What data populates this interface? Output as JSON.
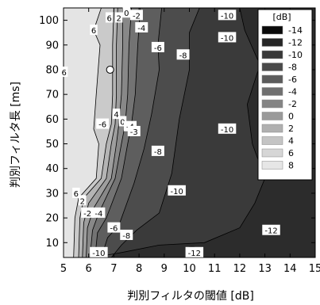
{
  "chart_data": {
    "type": "heatmap",
    "xlabel": "判別フィルタの閾値 [dB]",
    "ylabel": "判別フィルタ長 [ms]",
    "xlim": [
      5,
      15
    ],
    "ylim": [
      4,
      105
    ],
    "xticks": [
      5,
      6,
      7,
      8,
      9,
      10,
      11,
      12,
      13,
      14,
      15
    ],
    "yticks": [
      10,
      20,
      30,
      40,
      50,
      60,
      70,
      80,
      90,
      100
    ],
    "colorbar": {
      "unit": "[dB]",
      "levels": [
        -14,
        -12,
        -10,
        -8,
        -6,
        -4,
        -2,
        0,
        2,
        4,
        6,
        8
      ],
      "colors": [
        "#0a0a0a",
        "#262626",
        "#383838",
        "#4a4a4a",
        "#5c5c5c",
        "#707070",
        "#848484",
        "#9a9a9a",
        "#b0b0b0",
        "#c4c4c4",
        "#d6d6d6",
        "#e6e6e6"
      ]
    },
    "contour_labels": [
      {
        "text": "6",
        "x": 6.82,
        "y": 101
      },
      {
        "text": "6",
        "x": 6.2,
        "y": 96
      },
      {
        "text": "2",
        "x": 7.2,
        "y": 101
      },
      {
        "text": "0",
        "x": 7.5,
        "y": 103
      },
      {
        "text": "-2",
        "x": 7.9,
        "y": 102
      },
      {
        "text": "-4",
        "x": 8.1,
        "y": 97
      },
      {
        "text": "-10",
        "x": 11.5,
        "y": 102
      },
      {
        "text": "-10",
        "x": 11.5,
        "y": 93
      },
      {
        "text": "-6",
        "x": 8.75,
        "y": 89
      },
      {
        "text": "-8",
        "x": 9.75,
        "y": 86
      },
      {
        "text": "6",
        "x": 5.02,
        "y": 79
      },
      {
        "text": "-6",
        "x": 6.55,
        "y": 58
      },
      {
        "text": "4",
        "x": 7.1,
        "y": 62
      },
      {
        "text": "0",
        "x": 7.35,
        "y": 59
      },
      {
        "text": "-4",
        "x": 7.65,
        "y": 57
      },
      {
        "text": "-3",
        "x": 7.8,
        "y": 55
      },
      {
        "text": "-10",
        "x": 11.5,
        "y": 56
      },
      {
        "text": "-8",
        "x": 8.75,
        "y": 47
      },
      {
        "text": "-10",
        "x": 9.5,
        "y": 31
      },
      {
        "text": "6",
        "x": 5.5,
        "y": 30
      },
      {
        "text": "2",
        "x": 5.75,
        "y": 27
      },
      {
        "text": "-2",
        "x": 5.95,
        "y": 22
      },
      {
        "text": "-4",
        "x": 6.4,
        "y": 22
      },
      {
        "text": "-6",
        "x": 7,
        "y": 16
      },
      {
        "text": "-8",
        "x": 7.5,
        "y": 13
      },
      {
        "text": "-12",
        "x": 13.25,
        "y": 15
      },
      {
        "text": "-10",
        "x": 6.4,
        "y": 6
      },
      {
        "text": "-12",
        "x": 10.2,
        "y": 6
      }
    ],
    "marker": {
      "x": 6.85,
      "y": 80
    }
  }
}
